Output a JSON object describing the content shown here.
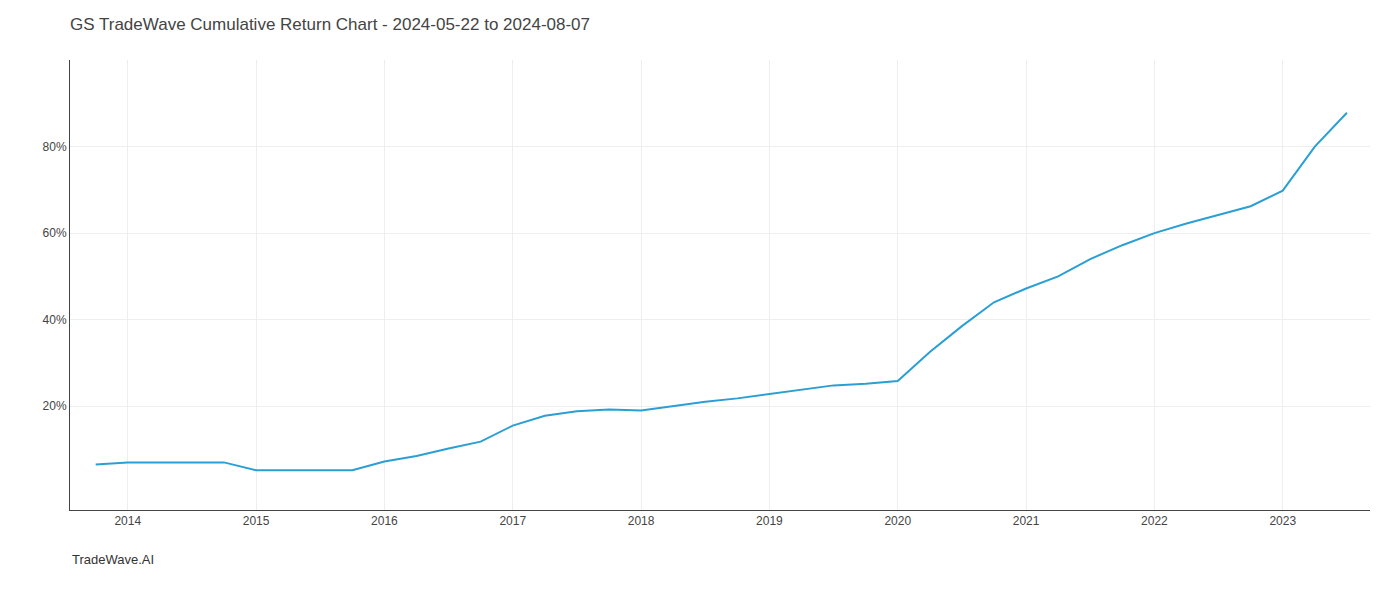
{
  "chart_data": {
    "type": "line",
    "title": "GS TradeWave Cumulative Return Chart - 2024-05-22 to 2024-08-07",
    "annotations": [
      "TradeWave.AI"
    ],
    "color": "#2b9fd4",
    "x": [
      2013.75,
      2014.0,
      2014.25,
      2014.5,
      2014.75,
      2015.0,
      2015.25,
      2015.5,
      2015.75,
      2016.0,
      2016.25,
      2016.5,
      2016.75,
      2017.0,
      2017.25,
      2017.5,
      2017.75,
      2018.0,
      2018.25,
      2018.5,
      2018.75,
      2019.0,
      2019.25,
      2019.5,
      2019.75,
      2020.0,
      2020.25,
      2020.5,
      2020.75,
      2021.0,
      2021.25,
      2021.5,
      2021.75,
      2022.0,
      2022.25,
      2022.5,
      2022.75,
      2023.0,
      2023.25,
      2023.5
    ],
    "values": [
      0.065,
      0.07,
      0.07,
      0.07,
      0.07,
      0.052,
      0.052,
      0.052,
      0.052,
      0.072,
      0.085,
      0.102,
      0.118,
      0.155,
      0.178,
      0.188,
      0.192,
      0.19,
      0.2,
      0.21,
      0.218,
      0.228,
      0.238,
      0.248,
      0.252,
      0.258,
      0.325,
      0.385,
      0.44,
      0.472,
      0.5,
      0.54,
      0.572,
      0.6,
      0.622,
      0.642,
      0.662,
      0.698,
      0.8,
      0.878
    ],
    "xlim": [
      2013.55,
      2023.68
    ],
    "xticks": [
      2014,
      2015,
      2016,
      2017,
      2018,
      2019,
      2020,
      2021,
      2022,
      2023
    ],
    "ylim": [
      -0.04,
      1.0
    ],
    "yticks": [
      {
        "value": 0.2,
        "label": "20%"
      },
      {
        "value": 0.4,
        "label": "40%"
      },
      {
        "value": 0.6,
        "label": "60%"
      },
      {
        "value": 0.8,
        "label": "80%"
      }
    ],
    "grid": true
  }
}
